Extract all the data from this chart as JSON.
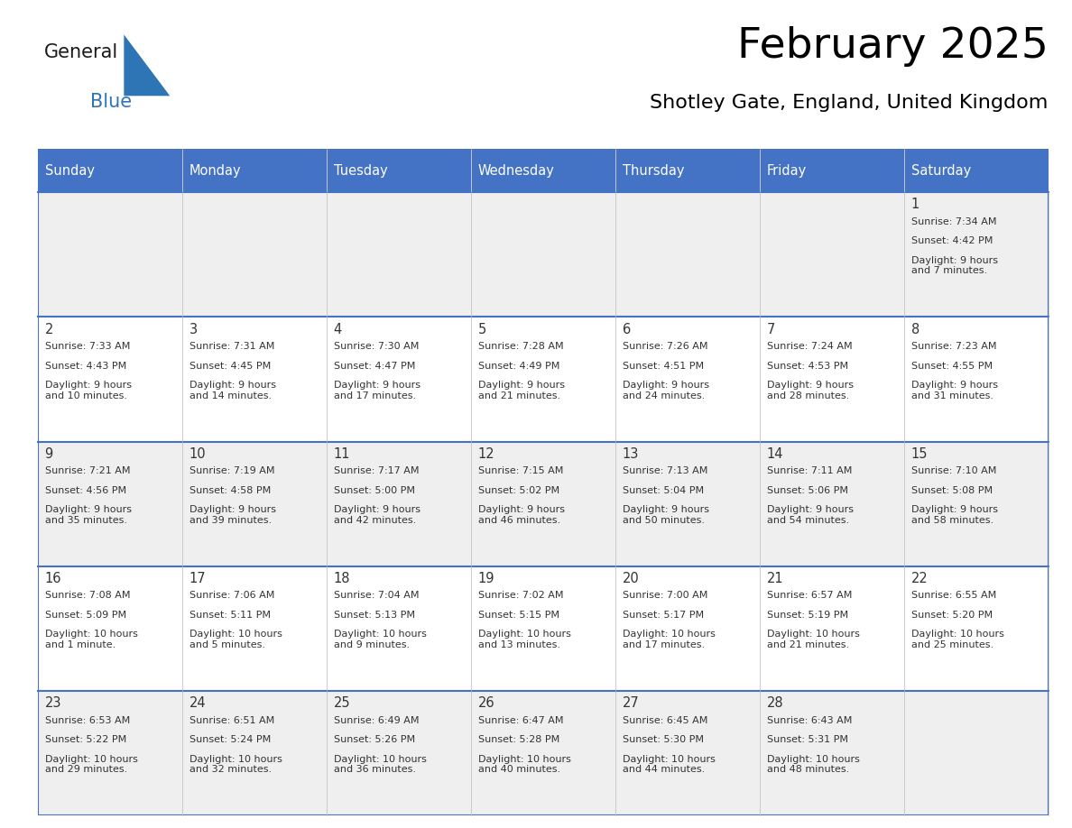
{
  "title": "February 2025",
  "subtitle": "Shotley Gate, England, United Kingdom",
  "header_bg": "#4472C4",
  "header_text": "#FFFFFF",
  "cell_bg_light": "#EFEFEF",
  "cell_bg_white": "#FFFFFF",
  "cell_border": "#4472C4",
  "title_color": "#000000",
  "subtitle_color": "#000000",
  "day_text_color": "#333333",
  "days_of_week": [
    "Sunday",
    "Monday",
    "Tuesday",
    "Wednesday",
    "Thursday",
    "Friday",
    "Saturday"
  ],
  "logo_general_color": "#1a1a1a",
  "logo_blue_color": "#2E75B6",
  "calendar_data": [
    [
      null,
      null,
      null,
      null,
      null,
      null,
      1
    ],
    [
      2,
      3,
      4,
      5,
      6,
      7,
      8
    ],
    [
      9,
      10,
      11,
      12,
      13,
      14,
      15
    ],
    [
      16,
      17,
      18,
      19,
      20,
      21,
      22
    ],
    [
      23,
      24,
      25,
      26,
      27,
      28,
      null
    ]
  ],
  "cell_info": {
    "1": {
      "sunrise": "7:34 AM",
      "sunset": "4:42 PM",
      "daylight": "9 hours\nand 7 minutes."
    },
    "2": {
      "sunrise": "7:33 AM",
      "sunset": "4:43 PM",
      "daylight": "9 hours\nand 10 minutes."
    },
    "3": {
      "sunrise": "7:31 AM",
      "sunset": "4:45 PM",
      "daylight": "9 hours\nand 14 minutes."
    },
    "4": {
      "sunrise": "7:30 AM",
      "sunset": "4:47 PM",
      "daylight": "9 hours\nand 17 minutes."
    },
    "5": {
      "sunrise": "7:28 AM",
      "sunset": "4:49 PM",
      "daylight": "9 hours\nand 21 minutes."
    },
    "6": {
      "sunrise": "7:26 AM",
      "sunset": "4:51 PM",
      "daylight": "9 hours\nand 24 minutes."
    },
    "7": {
      "sunrise": "7:24 AM",
      "sunset": "4:53 PM",
      "daylight": "9 hours\nand 28 minutes."
    },
    "8": {
      "sunrise": "7:23 AM",
      "sunset": "4:55 PM",
      "daylight": "9 hours\nand 31 minutes."
    },
    "9": {
      "sunrise": "7:21 AM",
      "sunset": "4:56 PM",
      "daylight": "9 hours\nand 35 minutes."
    },
    "10": {
      "sunrise": "7:19 AM",
      "sunset": "4:58 PM",
      "daylight": "9 hours\nand 39 minutes."
    },
    "11": {
      "sunrise": "7:17 AM",
      "sunset": "5:00 PM",
      "daylight": "9 hours\nand 42 minutes."
    },
    "12": {
      "sunrise": "7:15 AM",
      "sunset": "5:02 PM",
      "daylight": "9 hours\nand 46 minutes."
    },
    "13": {
      "sunrise": "7:13 AM",
      "sunset": "5:04 PM",
      "daylight": "9 hours\nand 50 minutes."
    },
    "14": {
      "sunrise": "7:11 AM",
      "sunset": "5:06 PM",
      "daylight": "9 hours\nand 54 minutes."
    },
    "15": {
      "sunrise": "7:10 AM",
      "sunset": "5:08 PM",
      "daylight": "9 hours\nand 58 minutes."
    },
    "16": {
      "sunrise": "7:08 AM",
      "sunset": "5:09 PM",
      "daylight": "10 hours\nand 1 minute."
    },
    "17": {
      "sunrise": "7:06 AM",
      "sunset": "5:11 PM",
      "daylight": "10 hours\nand 5 minutes."
    },
    "18": {
      "sunrise": "7:04 AM",
      "sunset": "5:13 PM",
      "daylight": "10 hours\nand 9 minutes."
    },
    "19": {
      "sunrise": "7:02 AM",
      "sunset": "5:15 PM",
      "daylight": "10 hours\nand 13 minutes."
    },
    "20": {
      "sunrise": "7:00 AM",
      "sunset": "5:17 PM",
      "daylight": "10 hours\nand 17 minutes."
    },
    "21": {
      "sunrise": "6:57 AM",
      "sunset": "5:19 PM",
      "daylight": "10 hours\nand 21 minutes."
    },
    "22": {
      "sunrise": "6:55 AM",
      "sunset": "5:20 PM",
      "daylight": "10 hours\nand 25 minutes."
    },
    "23": {
      "sunrise": "6:53 AM",
      "sunset": "5:22 PM",
      "daylight": "10 hours\nand 29 minutes."
    },
    "24": {
      "sunrise": "6:51 AM",
      "sunset": "5:24 PM",
      "daylight": "10 hours\nand 32 minutes."
    },
    "25": {
      "sunrise": "6:49 AM",
      "sunset": "5:26 PM",
      "daylight": "10 hours\nand 36 minutes."
    },
    "26": {
      "sunrise": "6:47 AM",
      "sunset": "5:28 PM",
      "daylight": "10 hours\nand 40 minutes."
    },
    "27": {
      "sunrise": "6:45 AM",
      "sunset": "5:30 PM",
      "daylight": "10 hours\nand 44 minutes."
    },
    "28": {
      "sunrise": "6:43 AM",
      "sunset": "5:31 PM",
      "daylight": "10 hours\nand 48 minutes."
    }
  }
}
